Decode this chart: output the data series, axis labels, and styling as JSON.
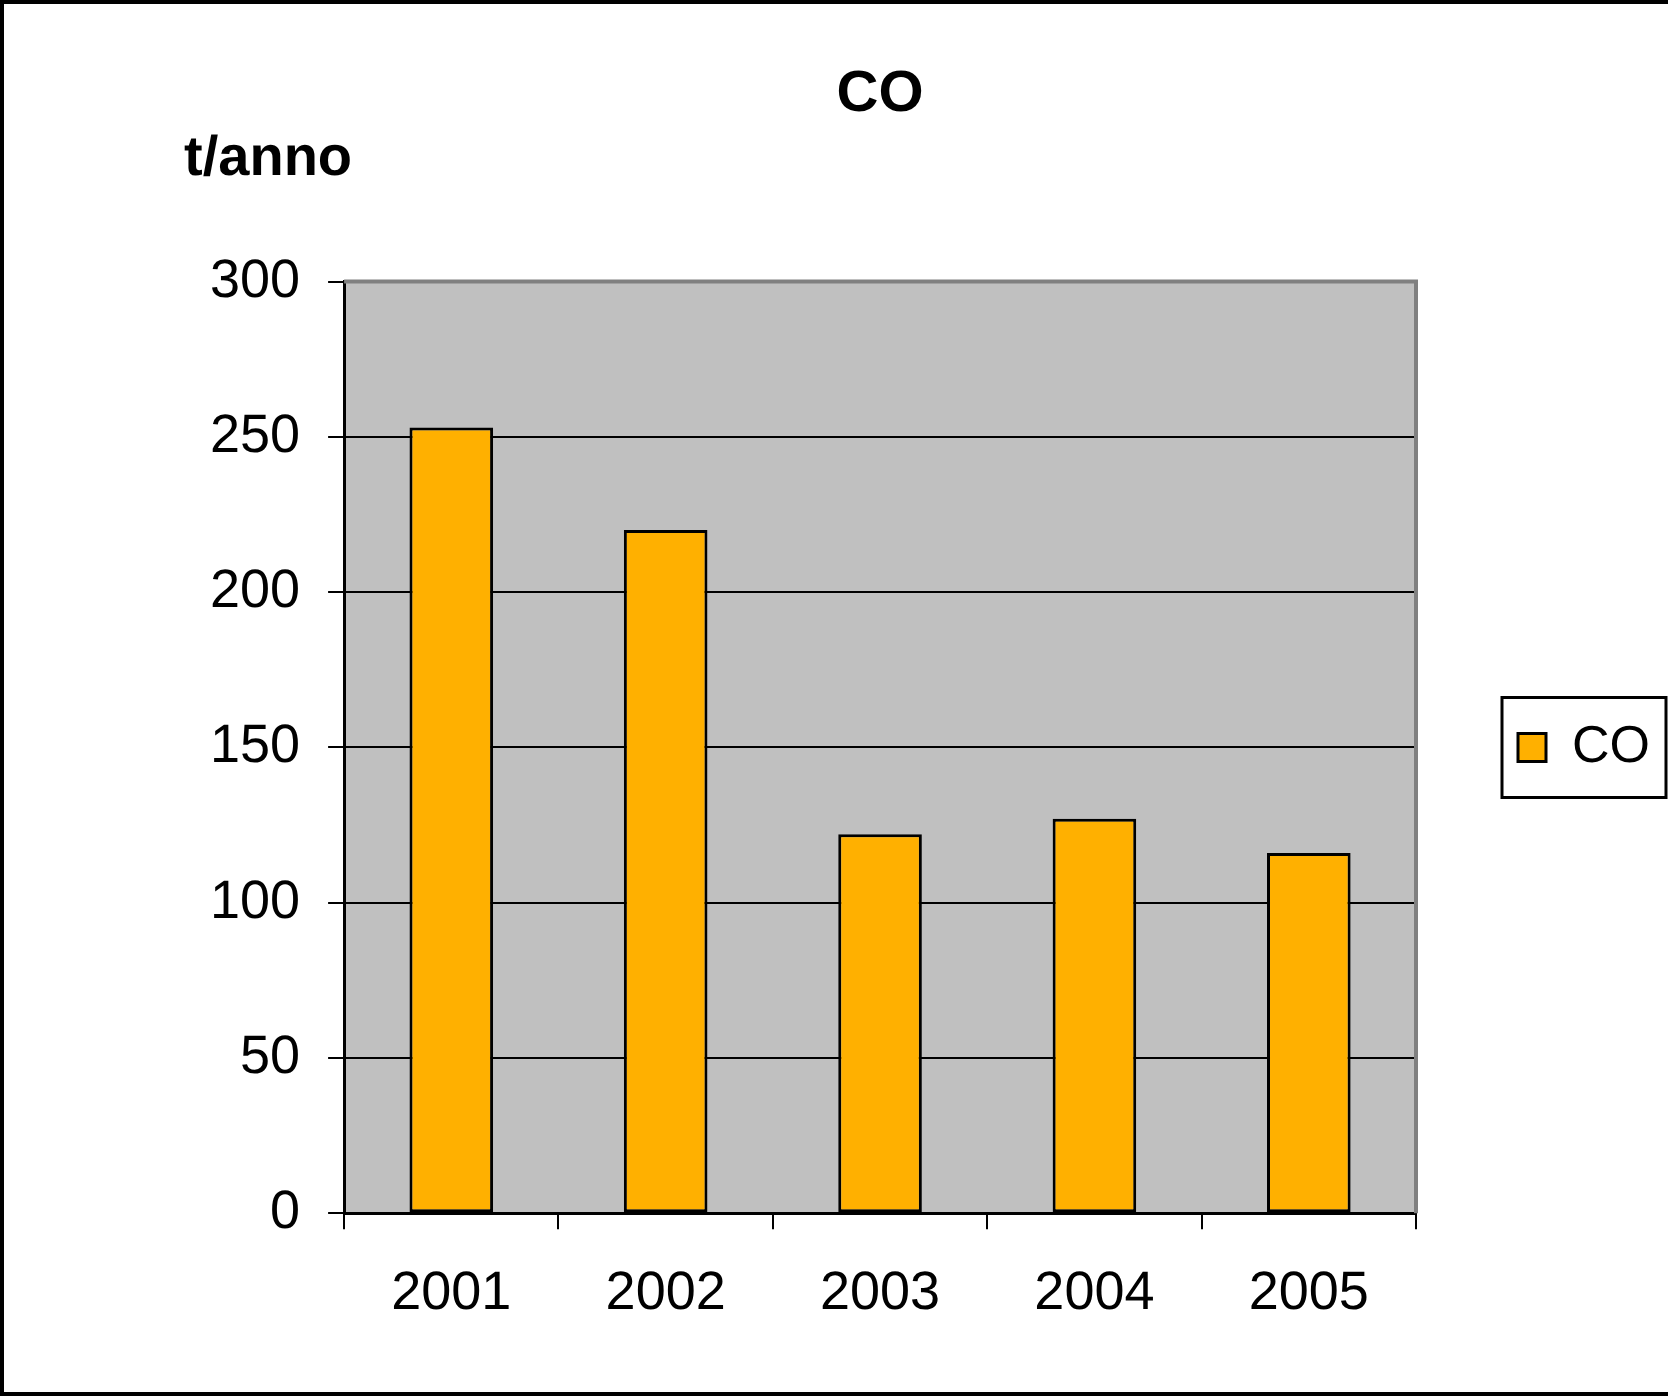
{
  "chart_data": {
    "type": "bar",
    "title": "CO",
    "ylabel": "t/anno",
    "categories": [
      "2001",
      "2002",
      "2003",
      "2004",
      "2005"
    ],
    "series": [
      {
        "name": "CO",
        "color": "#ffb000",
        "values": [
          253,
          220,
          122,
          127,
          116
        ]
      }
    ],
    "ylim": [
      0,
      300
    ],
    "yticks": [
      0,
      50,
      100,
      150,
      200,
      250,
      300
    ],
    "grid": "y",
    "legend": "right"
  }
}
